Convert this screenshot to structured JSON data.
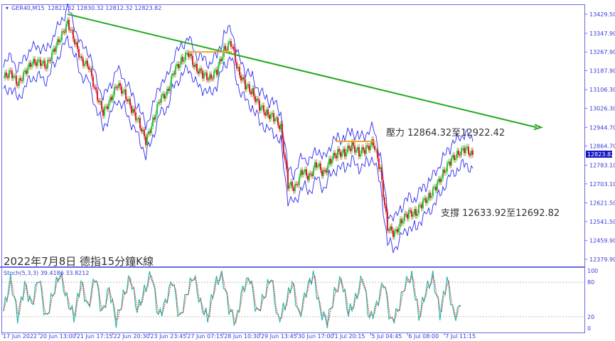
{
  "chart_data": {
    "type": "candlestick",
    "header": {
      "symbol": "GER40,M15",
      "ohlc": "12821.32 12830.32 12812.32 12823.82"
    },
    "title": "2022年7月8日 德指15分鐘K線",
    "current_price": "12823.82",
    "y_ticks": [
      "13429.50",
      "13347.90",
      "13267.90",
      "13187.90",
      "13106.30",
      "13026.30",
      "12944.70",
      "12864.70",
      "12783.10",
      "12703.10",
      "12621.50",
      "12541.50",
      "12459.90",
      "12379.90"
    ],
    "ylim": [
      12379.9,
      13429.5
    ],
    "x_ticks": [
      "17 Jun 2022",
      "20 Jun 13:00",
      "21 Jun 17:15",
      "22 Jun 20:30",
      "23 Jun 23:45",
      "27 Jun 07:15",
      "28 Jun 10:30",
      "29 Jun 13:45",
      "30 Jun 17:00",
      "1 Jul 20:15",
      "5 Jul 04:45",
      "6 Jul 08:00",
      "7 Jul 11:15"
    ],
    "price_approx": [
      13156,
      13186,
      13125,
      13186,
      13217,
      13232,
      13201,
      13277,
      13323,
      13399,
      13308,
      13232,
      13201,
      13095,
      13004,
      13065,
      13125,
      13095,
      13019,
      12973,
      12882,
      12973,
      13065,
      13095,
      13186,
      13232,
      13262,
      13201,
      13171,
      13156,
      13186,
      13277,
      13308,
      13186,
      13125,
      13095,
      13034,
      13004,
      12988,
      12943,
      12700,
      12685,
      12760,
      12730,
      12791,
      12745,
      12806,
      12836,
      12836,
      12867,
      12836,
      12852,
      12882,
      12760,
      12517,
      12487,
      12547,
      12578,
      12578,
      12624,
      12654,
      12700,
      12760,
      12806,
      12836,
      12852,
      12827
    ],
    "trendline": {
      "from": 13429.5,
      "to": 12944.7,
      "color": "#22a91e"
    },
    "resistance_line": 12885,
    "range_line": 13268,
    "annotations": {
      "resistance": "壓力 12864.32至12922.42",
      "support": "支撐 12633.92至12692.82"
    },
    "stochastic": {
      "label": "Stoch(5,3,3) 39.4186 33.8212",
      "y_ticks": [
        "100",
        "80",
        "20",
        "0"
      ],
      "levels": [
        80,
        20
      ],
      "values": [
        30,
        85,
        20,
        75,
        40,
        90,
        15,
        60,
        95,
        50,
        20,
        80,
        35,
        92,
        25,
        70,
        10,
        55,
        88,
        30,
        65,
        96,
        20,
        45,
        85,
        15,
        60,
        92,
        40,
        18,
        75,
        95,
        35,
        10,
        70,
        88,
        25,
        55,
        90,
        12,
        40,
        80,
        20,
        65,
        95,
        30,
        10,
        60,
        85,
        25,
        50,
        90,
        15,
        40,
        82,
        10,
        30,
        75,
        92,
        20,
        65,
        90,
        25,
        85,
        20,
        39
      ]
    },
    "colors": {
      "bands": "#2b2bf0",
      "up": "#1ec81e",
      "down": "#e01010",
      "stoch_main": "#27b8a8",
      "stoch_signal": "#e02020",
      "axis": "#6a6ae8",
      "price_label_bg": "#1414c8",
      "level_line": "#f5a623"
    }
  }
}
